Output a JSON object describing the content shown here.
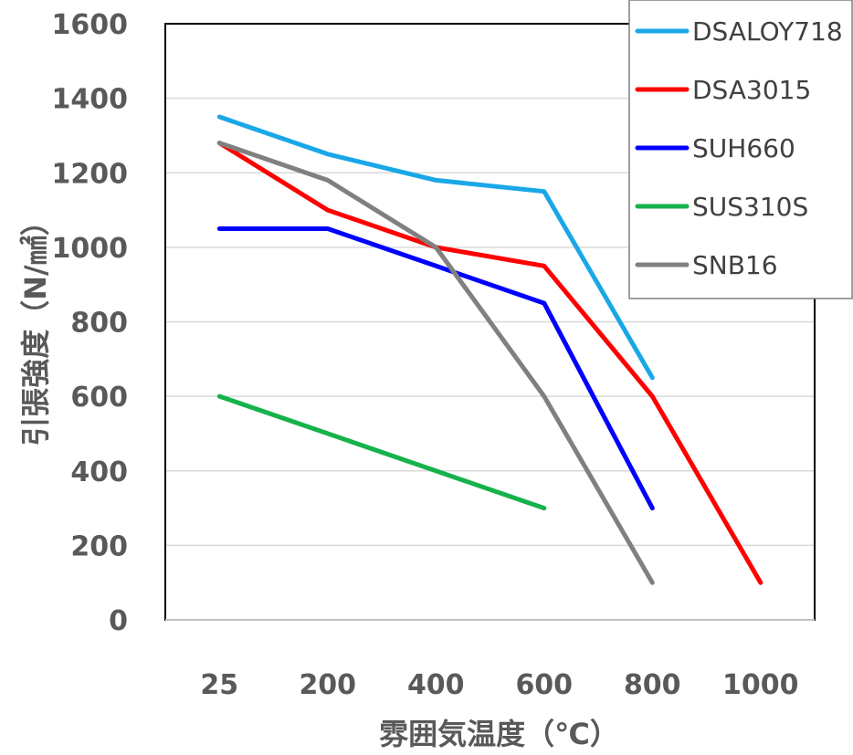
{
  "chart_data": {
    "type": "line",
    "categories": [
      "25",
      "200",
      "400",
      "600",
      "800",
      "1000"
    ],
    "xlabel": "雰囲気温度（℃）",
    "ylabel": "引張強度（N/㎟）",
    "ylim": [
      0,
      1600
    ],
    "yticks": [
      0,
      200,
      400,
      600,
      800,
      1000,
      1200,
      1400,
      1600
    ],
    "grid": true,
    "legend_position": "top-right",
    "series": [
      {
        "name": "DSALOY718",
        "color": "#1aa7e8",
        "values": [
          1350,
          1250,
          1180,
          1150,
          650,
          null
        ]
      },
      {
        "name": "DSA3015",
        "color": "#ff0000",
        "values": [
          1280,
          1100,
          1000,
          950,
          600,
          100
        ]
      },
      {
        "name": "SUH660",
        "color": "#0000ff",
        "values": [
          1050,
          1050,
          950,
          850,
          300,
          null
        ]
      },
      {
        "name": "SUS310S",
        "color": "#16b24b",
        "values": [
          600,
          500,
          400,
          300,
          null,
          null
        ]
      },
      {
        "name": "SNB16",
        "color": "#808080",
        "values": [
          1280,
          1180,
          1000,
          600,
          100,
          null
        ]
      }
    ]
  }
}
